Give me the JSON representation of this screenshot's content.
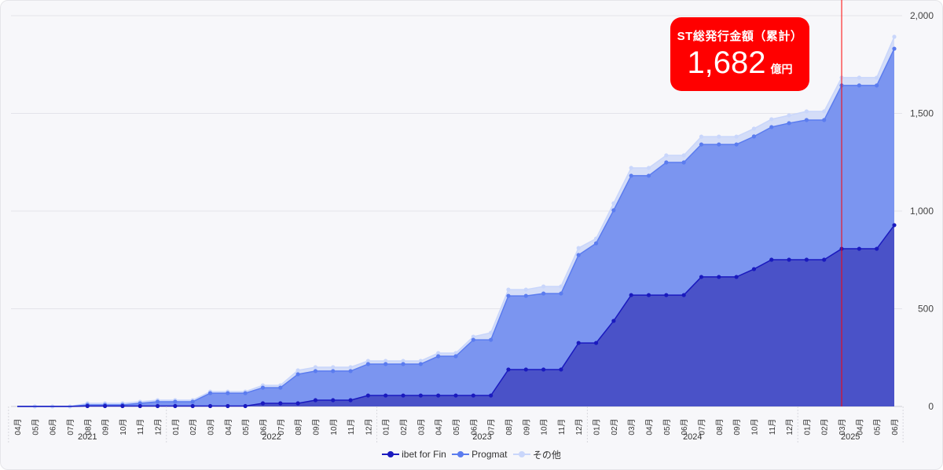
{
  "callout": {
    "title": "ST総発行金額（累計）",
    "value": "1,682",
    "unit": "億円"
  },
  "colors": {
    "ibet": "#1a1abf",
    "progmat": "#5b7cef",
    "other": "#c9d6fb",
    "marker_line": "#ff0000",
    "callout_bg": "#ff0000"
  },
  "chart_data": {
    "type": "area",
    "stacked": true,
    "ylim": [
      0,
      2000
    ],
    "yticks": [
      "0",
      "500",
      "1,000",
      "1,500",
      "2,000"
    ],
    "ytick_values": [
      0,
      500,
      1000,
      1500,
      2000
    ],
    "y_axis_side": "right",
    "grid": true,
    "legend_position": "bottom",
    "month_labels": [
      "04月",
      "05月",
      "06月",
      "07月",
      "08月",
      "09月",
      "10月",
      "11月",
      "12月",
      "01月",
      "02月",
      "03月",
      "04月",
      "05月",
      "06月",
      "07月",
      "08月",
      "09月",
      "10月",
      "11月",
      "12月",
      "01月",
      "02月",
      "03月",
      "04月",
      "05月",
      "06月",
      "07月",
      "08月",
      "09月",
      "10月",
      "11月",
      "12月",
      "01月",
      "02月",
      "03月",
      "04月",
      "05月",
      "06月",
      "07月",
      "08月",
      "09月",
      "10月",
      "11月",
      "12月",
      "01月",
      "02月",
      "03月",
      "04月",
      "05月",
      "06月"
    ],
    "years": [
      {
        "label": "2021",
        "start": 0,
        "end": 8
      },
      {
        "label": "2022",
        "start": 9,
        "end": 20
      },
      {
        "label": "2023",
        "start": 21,
        "end": 32
      },
      {
        "label": "2024",
        "start": 33,
        "end": 44
      },
      {
        "label": "2025",
        "start": 45,
        "end": 50
      }
    ],
    "marker_index": 47,
    "series": [
      {
        "name": "ibet for Fin",
        "key": "ibet",
        "values": [
          0,
          0,
          0,
          0,
          2,
          2,
          2,
          2,
          2,
          2,
          2,
          2,
          2,
          2,
          16,
          16,
          16,
          32,
          32,
          32,
          56,
          56,
          56,
          56,
          56,
          56,
          56,
          56,
          189,
          189,
          189,
          189,
          325,
          325,
          438,
          570,
          570,
          570,
          570,
          663,
          663,
          663,
          703,
          751,
          751,
          751,
          751,
          807,
          807,
          807,
          928
        ]
      },
      {
        "name": "Progmat",
        "key": "progmat",
        "values": [
          0,
          0,
          0,
          0,
          6,
          6,
          6,
          14,
          22,
          22,
          22,
          66,
          66,
          66,
          80,
          80,
          149,
          149,
          149,
          149,
          161,
          161,
          161,
          161,
          201,
          201,
          285,
          285,
          377,
          377,
          389,
          389,
          450,
          510,
          566,
          611,
          611,
          679,
          679,
          678,
          678,
          678,
          679,
          679,
          699,
          715,
          715,
          836,
          836,
          836,
          903
        ]
      },
      {
        "name": "その他",
        "key": "other",
        "values": [
          0,
          0,
          0,
          0,
          8,
          8,
          8,
          8,
          8,
          8,
          8,
          8,
          8,
          8,
          12,
          12,
          20,
          20,
          20,
          20,
          16,
          16,
          16,
          16,
          16,
          16,
          16,
          36,
          32,
          32,
          36,
          36,
          36,
          24,
          36,
          40,
          40,
          36,
          36,
          40,
          40,
          40,
          40,
          40,
          40,
          44,
          44,
          40,
          40,
          40,
          61
        ]
      }
    ]
  }
}
